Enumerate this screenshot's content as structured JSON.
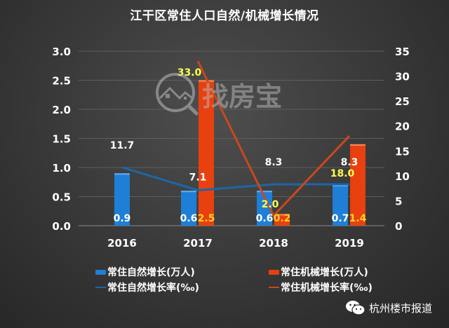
{
  "title": "江干区常住人口自然/机械增长情况",
  "colors": {
    "natural_bar": "#1f7fd6",
    "mechanical_bar": "#e8400f",
    "natural_line": "#1d66a8",
    "mechanical_line": "#c9481e",
    "bar_label_natural": "#ffffff",
    "bar_label_mechanical": "#ffd21f",
    "line_label_natural": "#ffffff",
    "line_label_mechanical": "#ffff4d",
    "gridline": "#5e5e5e"
  },
  "legend": {
    "items": [
      {
        "label": "常住自然增长(万人)",
        "kind": "bar",
        "color": "#1f7fd6"
      },
      {
        "label": "常住机械增长(万人)",
        "kind": "bar",
        "color": "#e8400f"
      },
      {
        "label": "常住自然增长率(‰)",
        "kind": "line",
        "color": "#1d66a8"
      },
      {
        "label": "常住机械增长率(‰)",
        "kind": "line",
        "color": "#c9481e"
      }
    ]
  },
  "watermark": {
    "brand_text": "找房宝",
    "source_text": "杭州楼市报道",
    "source_icon": "wechat-icon"
  },
  "chart_data": {
    "type": "bar",
    "title": "江干区常住人口自然/机械增长情况",
    "categories": [
      "2016",
      "2017",
      "2018",
      "2019"
    ],
    "xlabel": "",
    "ylabel": "",
    "ylim": [
      0,
      3.0
    ],
    "yticks": [
      "0.0",
      "0.5",
      "1.0",
      "1.5",
      "2.0",
      "2.5",
      "3.0"
    ],
    "y2lim": [
      0,
      35
    ],
    "y2ticks": [
      "0",
      "5",
      "10",
      "15",
      "20",
      "25",
      "30",
      "35"
    ],
    "grid": true,
    "legend_position": "bottom",
    "series": [
      {
        "name": "常住自然增长(万人)",
        "type": "bar",
        "axis": "left",
        "values": [
          0.9,
          0.6,
          0.6,
          0.7
        ],
        "labels": [
          "0.9",
          "0.6",
          "0.6",
          "0.7"
        ]
      },
      {
        "name": "常住机械增长(万人)",
        "type": "bar",
        "axis": "left",
        "values": [
          null,
          2.5,
          0.2,
          1.4
        ],
        "labels": [
          "",
          "2.5",
          "0.2",
          "1.4"
        ]
      },
      {
        "name": "常住自然增长率(‰)",
        "type": "line",
        "axis": "right",
        "values": [
          11.7,
          7.1,
          8.3,
          8.3
        ],
        "labels": [
          "11.7",
          "7.1",
          "8.3",
          "8.3"
        ]
      },
      {
        "name": "常住机械增长率(‰)",
        "type": "line",
        "axis": "right",
        "values": [
          null,
          33.0,
          2.0,
          18.0
        ],
        "labels": [
          "",
          "33.0",
          "2.0",
          "18.0"
        ]
      }
    ]
  }
}
